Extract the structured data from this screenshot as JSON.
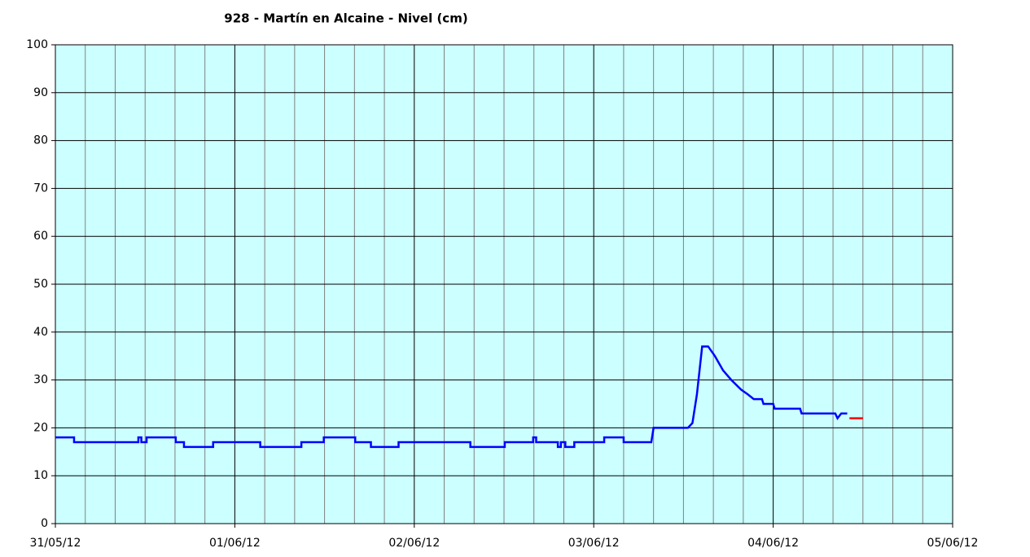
{
  "chart_data": {
    "type": "line",
    "title": "928 - Martín en Alcaine - Nivel (cm)",
    "xlim": [
      0,
      120
    ],
    "xticks": [
      {
        "value": 0,
        "label": "31/05/12"
      },
      {
        "value": 24,
        "label": "01/06/12"
      },
      {
        "value": 48,
        "label": "02/06/12"
      },
      {
        "value": 72,
        "label": "03/06/12"
      },
      {
        "value": 96,
        "label": "04/06/12"
      },
      {
        "value": 120,
        "label": "05/06/12"
      }
    ],
    "xgrid_minor": [
      4,
      8,
      12,
      16,
      20,
      28,
      32,
      36,
      40,
      44,
      52,
      56,
      60,
      64,
      68,
      76,
      80,
      84,
      88,
      92,
      100,
      104,
      108,
      112,
      116
    ],
    "ylim": [
      0,
      100
    ],
    "yticks": [
      0,
      10,
      20,
      30,
      40,
      50,
      60,
      70,
      80,
      90,
      100
    ],
    "grid": true,
    "background": "#ccffff",
    "series": [
      {
        "color": "#0000ff",
        "x": [
          0,
          2.5,
          2.5,
          11.1,
          11.1,
          11.5,
          11.5,
          12.2,
          12.2,
          16.1,
          16.1,
          17.2,
          17.2,
          21.1,
          21.1,
          27.4,
          27.4,
          32.9,
          32.9,
          35.9,
          35.9,
          40.1,
          40.1,
          42.2,
          42.2,
          45.9,
          45.9,
          55.5,
          55.5,
          60.1,
          60.1,
          63.9,
          63.9,
          64.3,
          64.3,
          67.2,
          67.2,
          67.6,
          67.6,
          68.2,
          68.2,
          69.4,
          69.4,
          73.4,
          73.4,
          76.0,
          76.0,
          79.7,
          80.0,
          84.6,
          85.2,
          85.8,
          86.5,
          87.3,
          88.2,
          89.3,
          90.4,
          91.7,
          92.6,
          93.4,
          94.5,
          94.7,
          96.0,
          96.2,
          99.6,
          99.8,
          104.3,
          104.6,
          105.1,
          105.9
        ],
        "values": [
          18,
          18,
          17,
          17,
          18,
          18,
          17,
          17,
          18,
          18,
          17,
          17,
          16,
          16,
          17,
          17,
          16,
          16,
          17,
          17,
          18,
          18,
          17,
          17,
          16,
          16,
          17,
          17,
          16,
          16,
          17,
          17,
          18,
          18,
          17,
          17,
          16,
          16,
          17,
          17,
          16,
          16,
          17,
          17,
          18,
          18,
          17,
          17,
          20,
          20,
          21,
          27,
          37,
          37,
          35,
          32,
          30,
          28,
          27,
          26,
          26,
          25,
          25,
          24,
          24,
          23,
          23,
          22,
          23,
          23
        ]
      },
      {
        "color": "#ff0000",
        "x": [
          106.2,
          108.0
        ],
        "values": [
          22,
          22
        ]
      }
    ]
  }
}
